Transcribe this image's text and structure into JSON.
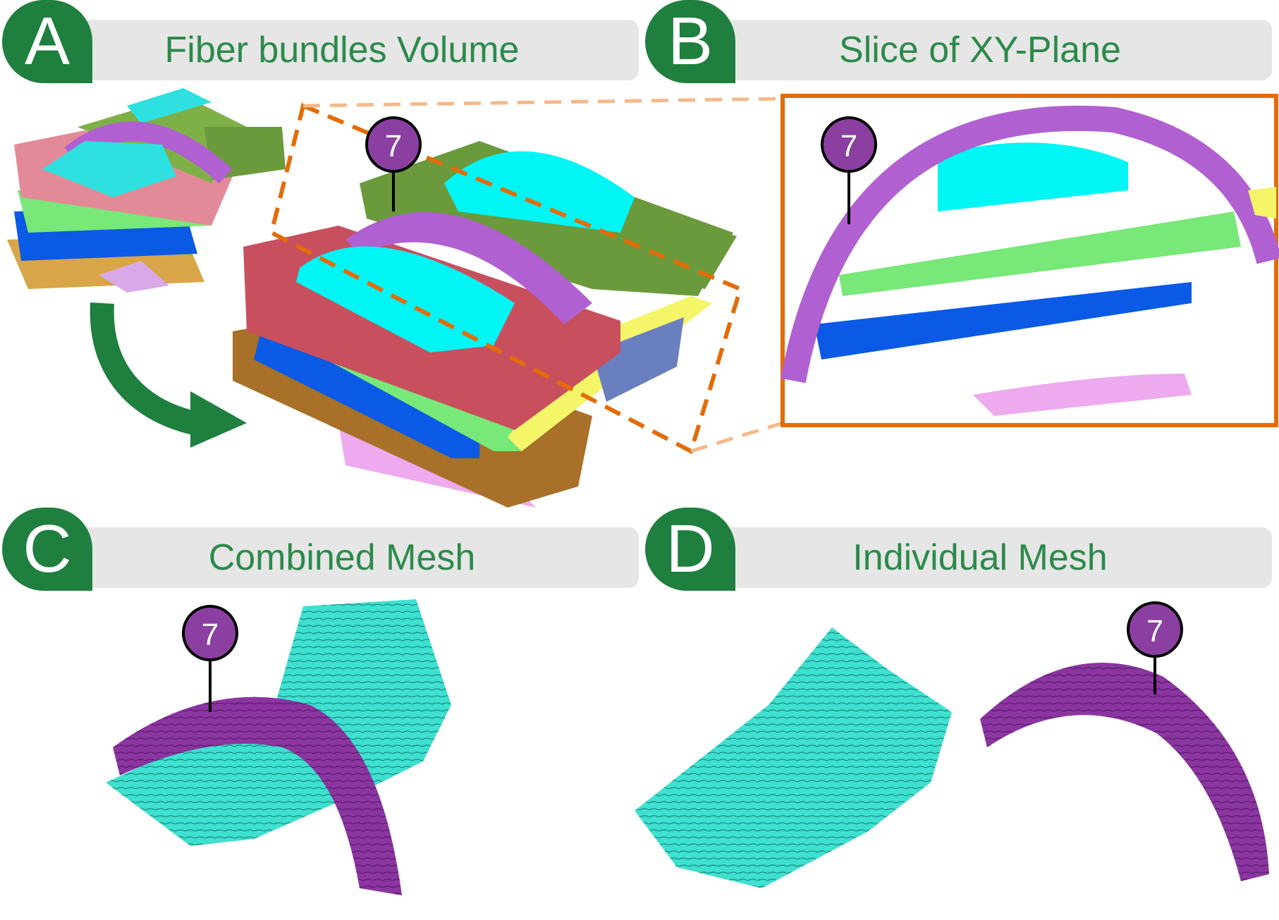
{
  "panels": [
    {
      "letter": "A",
      "title": "Fiber bundles Volume"
    },
    {
      "letter": "B",
      "title": "Slice of XY-Plane"
    },
    {
      "letter": "C",
      "title": "Combined Mesh"
    },
    {
      "letter": "D",
      "title": "Individual Mesh"
    }
  ],
  "marker_label": "7",
  "colors": {
    "badge_green": "#1f7f3e",
    "title_green": "#2b8a4a",
    "header_gray": "#e6e6e6",
    "highlight_orange": "#e36c0a",
    "marker_purple": "#8b3fa0",
    "cyan": "#00f5f5",
    "purple": "#b060d0",
    "red": "#c8505e",
    "olive": "#6a9a3c",
    "light_green": "#78e878",
    "blue": "#0a5ae6",
    "brown": "#a87028",
    "pink": "#eeaaee",
    "yellow": "#f5f56a",
    "mesh_teal": "#3ee0d0",
    "mesh_purple": "#8b35a0"
  }
}
